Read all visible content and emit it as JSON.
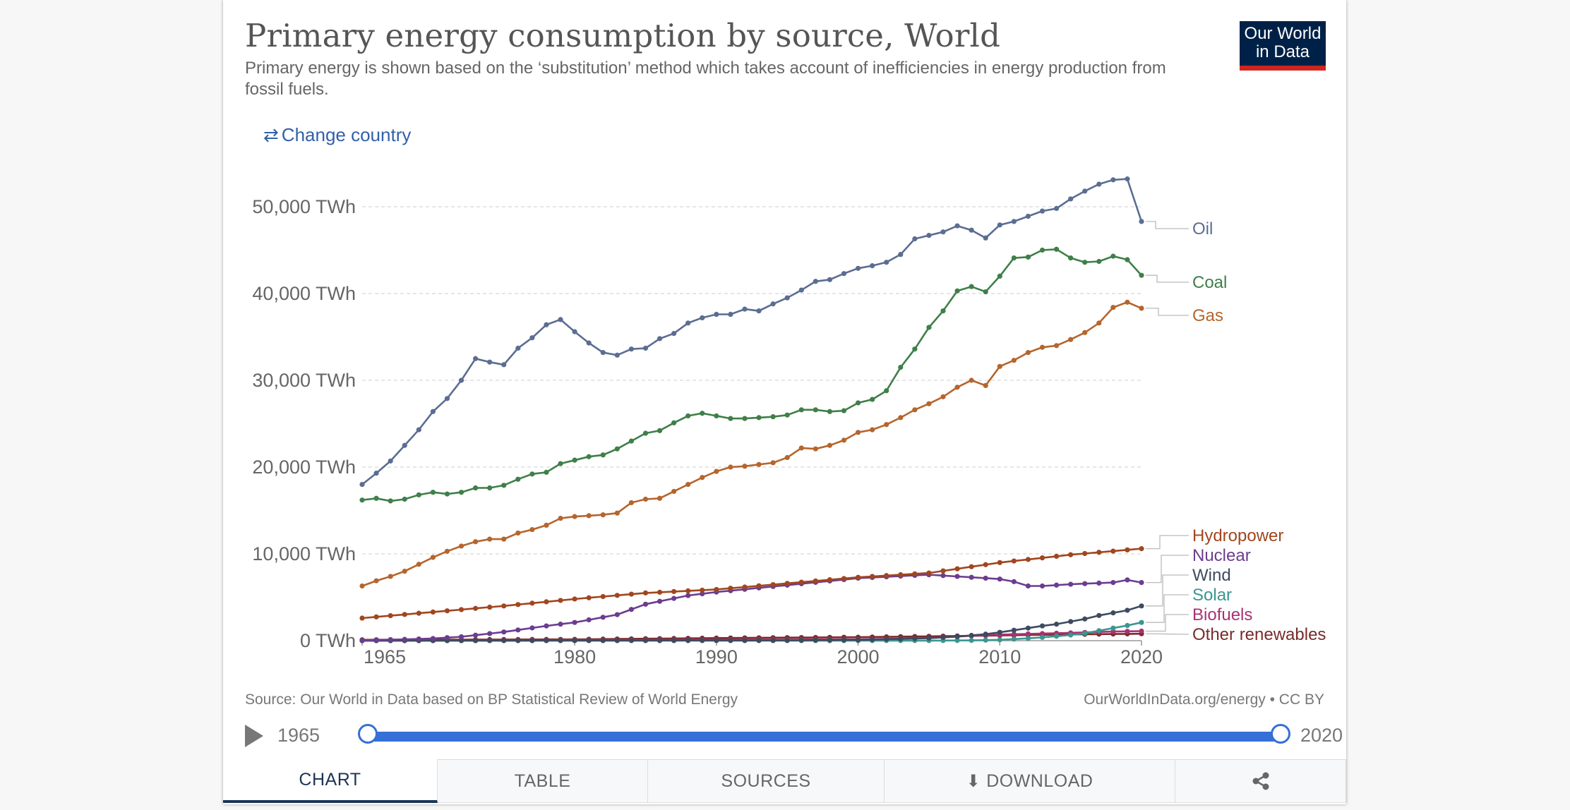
{
  "header": {
    "title": "Primary energy consumption by source, World",
    "subtitle": "Primary energy is shown based on the ‘substitution’ method which takes account of inefficiencies in energy production from fossil fuels.",
    "logo_line1": "Our World",
    "logo_line2": "in Data",
    "change_country": "Change country"
  },
  "footer": {
    "source": "Source: Our World in Data based on BP Statistical Review of World Energy",
    "credit": "OurWorldInData.org/energy • CC BY"
  },
  "timeline": {
    "start": "1965",
    "end": "2020",
    "range": [
      1965,
      2020
    ]
  },
  "tabs": {
    "chart": "CHART",
    "table": "TABLE",
    "sources": "SOURCES",
    "download": "DOWNLOAD"
  },
  "colors": {
    "oil": "#5b6d91",
    "coal": "#3f7f49",
    "gas": "#b5652d",
    "hydropower": "#a1461f",
    "nuclear": "#6b3d8f",
    "wind": "#3e4a5e",
    "solar": "#3a9690",
    "biofuels": "#a83272",
    "other_renewables": "#7a2b2b",
    "accent": "#3570d6"
  },
  "chart_data": {
    "type": "line",
    "title": "Primary energy consumption by source, World",
    "ylim": [
      0,
      55000
    ],
    "yticks": [
      {
        "value": 0,
        "label": "0 TWh"
      },
      {
        "value": 10000,
        "label": "10,000 TWh"
      },
      {
        "value": 20000,
        "label": "20,000 TWh"
      },
      {
        "value": 30000,
        "label": "30,000 TWh"
      },
      {
        "value": 40000,
        "label": "40,000 TWh"
      },
      {
        "value": 50000,
        "label": "50,000 TWh"
      }
    ],
    "xticks": [
      1965,
      1980,
      1990,
      2000,
      2010,
      2020
    ],
    "grid": true,
    "legend_placement": "right-end-labels",
    "series": [
      {
        "name": "Oil",
        "key": "oil",
        "knots": [
          [
            1965,
            18000
          ],
          [
            1966,
            19300
          ],
          [
            1967,
            20700
          ],
          [
            1968,
            22500
          ],
          [
            1969,
            24300
          ],
          [
            1970,
            26400
          ],
          [
            1971,
            27900
          ],
          [
            1972,
            30000
          ],
          [
            1973,
            32500
          ],
          [
            1974,
            32100
          ],
          [
            1975,
            31800
          ],
          [
            1976,
            33700
          ],
          [
            1977,
            34900
          ],
          [
            1978,
            36400
          ],
          [
            1979,
            37000
          ],
          [
            1980,
            35600
          ],
          [
            1981,
            34300
          ],
          [
            1982,
            33200
          ],
          [
            1983,
            32900
          ],
          [
            1984,
            33600
          ],
          [
            1985,
            33700
          ],
          [
            1986,
            34800
          ],
          [
            1987,
            35400
          ],
          [
            1988,
            36600
          ],
          [
            1989,
            37200
          ],
          [
            1990,
            37600
          ],
          [
            1991,
            37600
          ],
          [
            1992,
            38200
          ],
          [
            1993,
            38000
          ],
          [
            1994,
            38800
          ],
          [
            1995,
            39500
          ],
          [
            1996,
            40400
          ],
          [
            1997,
            41400
          ],
          [
            1998,
            41600
          ],
          [
            1999,
            42300
          ],
          [
            2000,
            42900
          ],
          [
            2001,
            43200
          ],
          [
            2002,
            43600
          ],
          [
            2003,
            44500
          ],
          [
            2004,
            46300
          ],
          [
            2005,
            46700
          ],
          [
            2006,
            47100
          ],
          [
            2007,
            47800
          ],
          [
            2008,
            47300
          ],
          [
            2009,
            46400
          ],
          [
            2010,
            47900
          ],
          [
            2011,
            48300
          ],
          [
            2012,
            48900
          ],
          [
            2013,
            49500
          ],
          [
            2014,
            49800
          ],
          [
            2015,
            50900
          ],
          [
            2016,
            51800
          ],
          [
            2017,
            52600
          ],
          [
            2018,
            53100
          ],
          [
            2019,
            53200
          ],
          [
            2020,
            48300
          ]
        ]
      },
      {
        "name": "Coal",
        "key": "coal",
        "knots": [
          [
            1965,
            16200
          ],
          [
            1966,
            16400
          ],
          [
            1967,
            16100
          ],
          [
            1968,
            16300
          ],
          [
            1969,
            16800
          ],
          [
            1970,
            17100
          ],
          [
            1971,
            16900
          ],
          [
            1972,
            17100
          ],
          [
            1973,
            17600
          ],
          [
            1974,
            17600
          ],
          [
            1975,
            17900
          ],
          [
            1976,
            18600
          ],
          [
            1977,
            19200
          ],
          [
            1978,
            19400
          ],
          [
            1979,
            20400
          ],
          [
            1980,
            20800
          ],
          [
            1981,
            21200
          ],
          [
            1982,
            21400
          ],
          [
            1983,
            22100
          ],
          [
            1984,
            23000
          ],
          [
            1985,
            23900
          ],
          [
            1986,
            24200
          ],
          [
            1987,
            25100
          ],
          [
            1988,
            25900
          ],
          [
            1989,
            26200
          ],
          [
            1990,
            25900
          ],
          [
            1991,
            25600
          ],
          [
            1992,
            25600
          ],
          [
            1993,
            25700
          ],
          [
            1994,
            25800
          ],
          [
            1995,
            26000
          ],
          [
            1996,
            26600
          ],
          [
            1997,
            26600
          ],
          [
            1998,
            26400
          ],
          [
            1999,
            26500
          ],
          [
            2000,
            27400
          ],
          [
            2001,
            27800
          ],
          [
            2002,
            28800
          ],
          [
            2003,
            31500
          ],
          [
            2004,
            33600
          ],
          [
            2005,
            36100
          ],
          [
            2006,
            38000
          ],
          [
            2007,
            40300
          ],
          [
            2008,
            40800
          ],
          [
            2009,
            40200
          ],
          [
            2010,
            42000
          ],
          [
            2011,
            44100
          ],
          [
            2012,
            44200
          ],
          [
            2013,
            45000
          ],
          [
            2014,
            45100
          ],
          [
            2015,
            44100
          ],
          [
            2016,
            43600
          ],
          [
            2017,
            43700
          ],
          [
            2018,
            44300
          ],
          [
            2019,
            43900
          ],
          [
            2020,
            42100
          ]
        ]
      },
      {
        "name": "Gas",
        "key": "gas",
        "knots": [
          [
            1965,
            6300
          ],
          [
            1966,
            6900
          ],
          [
            1967,
            7400
          ],
          [
            1968,
            8000
          ],
          [
            1969,
            8800
          ],
          [
            1970,
            9600
          ],
          [
            1971,
            10300
          ],
          [
            1972,
            10900
          ],
          [
            1973,
            11400
          ],
          [
            1974,
            11700
          ],
          [
            1975,
            11700
          ],
          [
            1976,
            12400
          ],
          [
            1977,
            12800
          ],
          [
            1978,
            13300
          ],
          [
            1979,
            14100
          ],
          [
            1980,
            14300
          ],
          [
            1981,
            14400
          ],
          [
            1982,
            14500
          ],
          [
            1983,
            14700
          ],
          [
            1984,
            15900
          ],
          [
            1985,
            16300
          ],
          [
            1986,
            16400
          ],
          [
            1987,
            17200
          ],
          [
            1988,
            18000
          ],
          [
            1989,
            18800
          ],
          [
            1990,
            19500
          ],
          [
            1991,
            20000
          ],
          [
            1992,
            20100
          ],
          [
            1993,
            20300
          ],
          [
            1994,
            20500
          ],
          [
            1995,
            21100
          ],
          [
            1996,
            22200
          ],
          [
            1997,
            22100
          ],
          [
            1998,
            22500
          ],
          [
            1999,
            23100
          ],
          [
            2000,
            24000
          ],
          [
            2001,
            24300
          ],
          [
            2002,
            24900
          ],
          [
            2003,
            25700
          ],
          [
            2004,
            26600
          ],
          [
            2005,
            27300
          ],
          [
            2006,
            28100
          ],
          [
            2007,
            29200
          ],
          [
            2008,
            30000
          ],
          [
            2009,
            29400
          ],
          [
            2010,
            31600
          ],
          [
            2011,
            32300
          ],
          [
            2012,
            33200
          ],
          [
            2013,
            33800
          ],
          [
            2014,
            34000
          ],
          [
            2015,
            34700
          ],
          [
            2016,
            35500
          ],
          [
            2017,
            36600
          ],
          [
            2018,
            38400
          ],
          [
            2019,
            39000
          ],
          [
            2020,
            38300
          ]
        ]
      },
      {
        "name": "Hydropower",
        "key": "hydropower",
        "knots": [
          [
            1965,
            2600
          ],
          [
            1970,
            3300
          ],
          [
            1975,
            4000
          ],
          [
            1980,
            4800
          ],
          [
            1985,
            5500
          ],
          [
            1990,
            5900
          ],
          [
            1995,
            6600
          ],
          [
            2000,
            7300
          ],
          [
            2005,
            7800
          ],
          [
            2010,
            9000
          ],
          [
            2015,
            9900
          ],
          [
            2020,
            10600
          ]
        ]
      },
      {
        "name": "Nuclear",
        "key": "nuclear",
        "knots": [
          [
            1965,
            50
          ],
          [
            1968,
            150
          ],
          [
            1970,
            250
          ],
          [
            1972,
            450
          ],
          [
            1975,
            1000
          ],
          [
            1978,
            1700
          ],
          [
            1980,
            2100
          ],
          [
            1983,
            3000
          ],
          [
            1985,
            4200
          ],
          [
            1988,
            5200
          ],
          [
            1990,
            5600
          ],
          [
            1995,
            6400
          ],
          [
            2000,
            7200
          ],
          [
            2005,
            7600
          ],
          [
            2010,
            7100
          ],
          [
            2011,
            6800
          ],
          [
            2012,
            6300
          ],
          [
            2013,
            6300
          ],
          [
            2014,
            6400
          ],
          [
            2015,
            6500
          ],
          [
            2018,
            6700
          ],
          [
            2019,
            7000
          ],
          [
            2020,
            6700
          ]
        ]
      },
      {
        "name": "Wind",
        "key": "wind",
        "knots": [
          [
            1965,
            0
          ],
          [
            1995,
            30
          ],
          [
            2000,
            90
          ],
          [
            2003,
            200
          ],
          [
            2005,
            290
          ],
          [
            2007,
            470
          ],
          [
            2009,
            750
          ],
          [
            2010,
            960
          ],
          [
            2011,
            1200
          ],
          [
            2012,
            1450
          ],
          [
            2013,
            1700
          ],
          [
            2014,
            1900
          ],
          [
            2015,
            2200
          ],
          [
            2016,
            2500
          ],
          [
            2017,
            2900
          ],
          [
            2018,
            3200
          ],
          [
            2019,
            3500
          ],
          [
            2020,
            4000
          ]
        ]
      },
      {
        "name": "Solar",
        "key": "solar",
        "knots": [
          [
            1965,
            0
          ],
          [
            2005,
            10
          ],
          [
            2008,
            30
          ],
          [
            2010,
            100
          ],
          [
            2011,
            180
          ],
          [
            2012,
            270
          ],
          [
            2013,
            380
          ],
          [
            2014,
            510
          ],
          [
            2015,
            650
          ],
          [
            2016,
            850
          ],
          [
            2017,
            1150
          ],
          [
            2018,
            1450
          ],
          [
            2019,
            1750
          ],
          [
            2020,
            2100
          ]
        ]
      },
      {
        "name": "Biofuels",
        "key": "biofuels",
        "knots": [
          [
            1965,
            0
          ],
          [
            1990,
            100
          ],
          [
            2000,
            150
          ],
          [
            2005,
            300
          ],
          [
            2008,
            560
          ],
          [
            2010,
            700
          ],
          [
            2012,
            780
          ],
          [
            2015,
            900
          ],
          [
            2018,
            1050
          ],
          [
            2020,
            1100
          ]
        ]
      },
      {
        "name": "Other renewables",
        "key": "other_renewables",
        "knots": [
          [
            1965,
            100
          ],
          [
            1980,
            150
          ],
          [
            1990,
            300
          ],
          [
            2000,
            400
          ],
          [
            2005,
            500
          ],
          [
            2010,
            600
          ],
          [
            2015,
            720
          ],
          [
            2020,
            800
          ]
        ]
      }
    ]
  }
}
